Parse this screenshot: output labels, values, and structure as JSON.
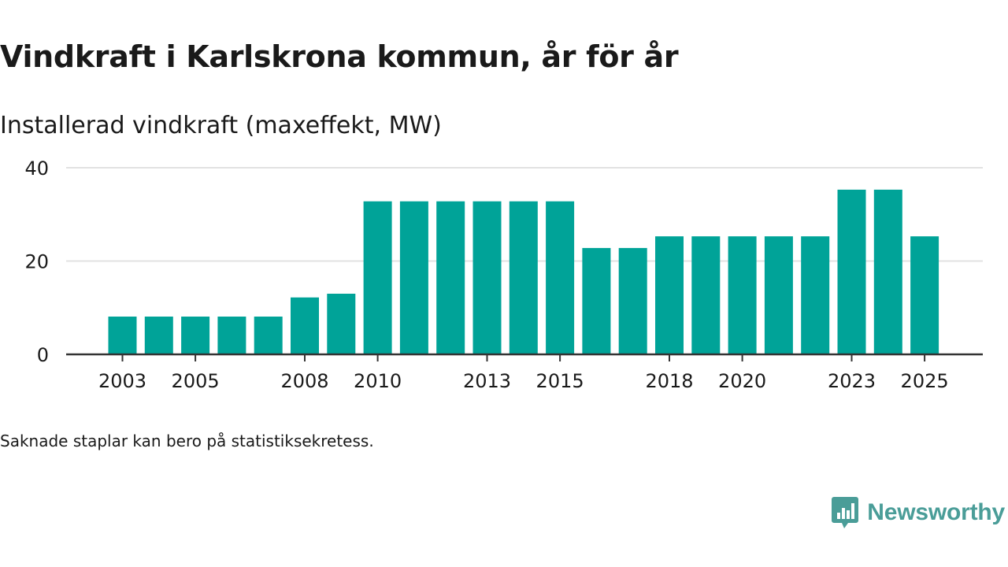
{
  "title": "Vindkraft i Karlskrona kommun, år för år",
  "subtitle": "Installerad vindkraft (maxeffekt, MW)",
  "footnote": "Saknade staplar kan bero på statistiksekretess.",
  "brand": {
    "name": "Newsworthy",
    "icon": "newsworthy-logo-icon",
    "color": "#4a9d98"
  },
  "colors": {
    "bar": "#00a398",
    "grid": "#e2e2e2",
    "axis": "#333333",
    "text": "#1a1a1a"
  },
  "chart_data": {
    "type": "bar",
    "title": "Vindkraft i Karlskrona kommun, år för år",
    "ylabel": "Installerad vindkraft (maxeffekt, MW)",
    "xlabel": "",
    "categories": [
      "2003",
      "2004",
      "2005",
      "2006",
      "2007",
      "2008",
      "2009",
      "2010",
      "2011",
      "2012",
      "2013",
      "2014",
      "2015",
      "2016",
      "2017",
      "2018",
      "2019",
      "2020",
      "2021",
      "2022",
      "2023",
      "2024",
      "2025"
    ],
    "values": [
      8.1,
      8.1,
      8.1,
      8.1,
      8.1,
      12.2,
      13.0,
      32.8,
      32.8,
      32.8,
      32.8,
      32.8,
      32.8,
      22.8,
      22.8,
      25.3,
      25.3,
      25.3,
      25.3,
      25.3,
      35.3,
      35.3,
      25.3
    ],
    "x_tick_labels": [
      "2003",
      "2005",
      "2008",
      "2010",
      "2013",
      "2015",
      "2018",
      "2020",
      "2023",
      "2025"
    ],
    "y_ticks": [
      0,
      20,
      40
    ],
    "ylim": [
      0,
      40
    ],
    "grid": true,
    "legend": "none"
  }
}
